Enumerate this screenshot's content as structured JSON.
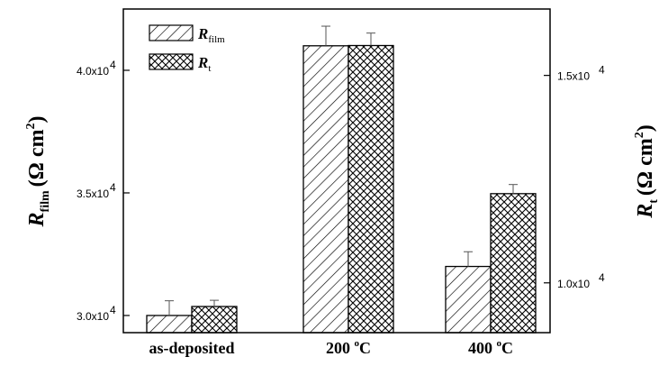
{
  "chart_data": {
    "type": "bar",
    "categories": [
      "as-deposited",
      "200 °C",
      "400 °C"
    ],
    "series": [
      {
        "name": "R_film",
        "axis": "left",
        "pattern": "diagonal-hatch",
        "values": [
          30000,
          41000,
          32000
        ],
        "errors": [
          600,
          800,
          600
        ]
      },
      {
        "name": "R_t",
        "axis": "right",
        "pattern": "cross-hatch",
        "values": [
          9430,
          15720,
          12150
        ],
        "errors": [
          150,
          300,
          220
        ]
      }
    ],
    "left_axis": {
      "label_symbol": "R",
      "label_subscript": "film",
      "label_unit": "(Ω cm",
      "label_unit_sup": "2",
      "label_unit_close": ")",
      "ylim": [
        29300,
        42500
      ],
      "ticks": [
        30000,
        35000,
        40000
      ],
      "tick_labels": [
        "3.0x10",
        "3.5x10",
        "4.0x10"
      ],
      "tick_exponent": "4"
    },
    "right_axis": {
      "label_symbol": "R",
      "label_subscript": "t",
      "label_unit": "(Ω cm",
      "label_unit_sup": "2",
      "label_unit_close": ")",
      "ylim": [
        8800,
        16600
      ],
      "ticks": [
        10000,
        15000
      ],
      "tick_labels": [
        "1.0x10",
        "1.5x10"
      ],
      "tick_exponent": "4"
    },
    "legend": {
      "placement": "top-left",
      "entries": [
        {
          "symbol": "R",
          "subscript": "film",
          "pattern": "diagonal-hatch"
        },
        {
          "symbol": "R",
          "subscript": "t",
          "pattern": "cross-hatch"
        }
      ]
    },
    "category_labels": [
      {
        "text": "as-deposited",
        "sup": "",
        "unit": ""
      },
      {
        "text": "200 ",
        "sup": "o",
        "unit": "C"
      },
      {
        "text": "400 ",
        "sup": "o",
        "unit": "C"
      }
    ],
    "grid": false
  }
}
